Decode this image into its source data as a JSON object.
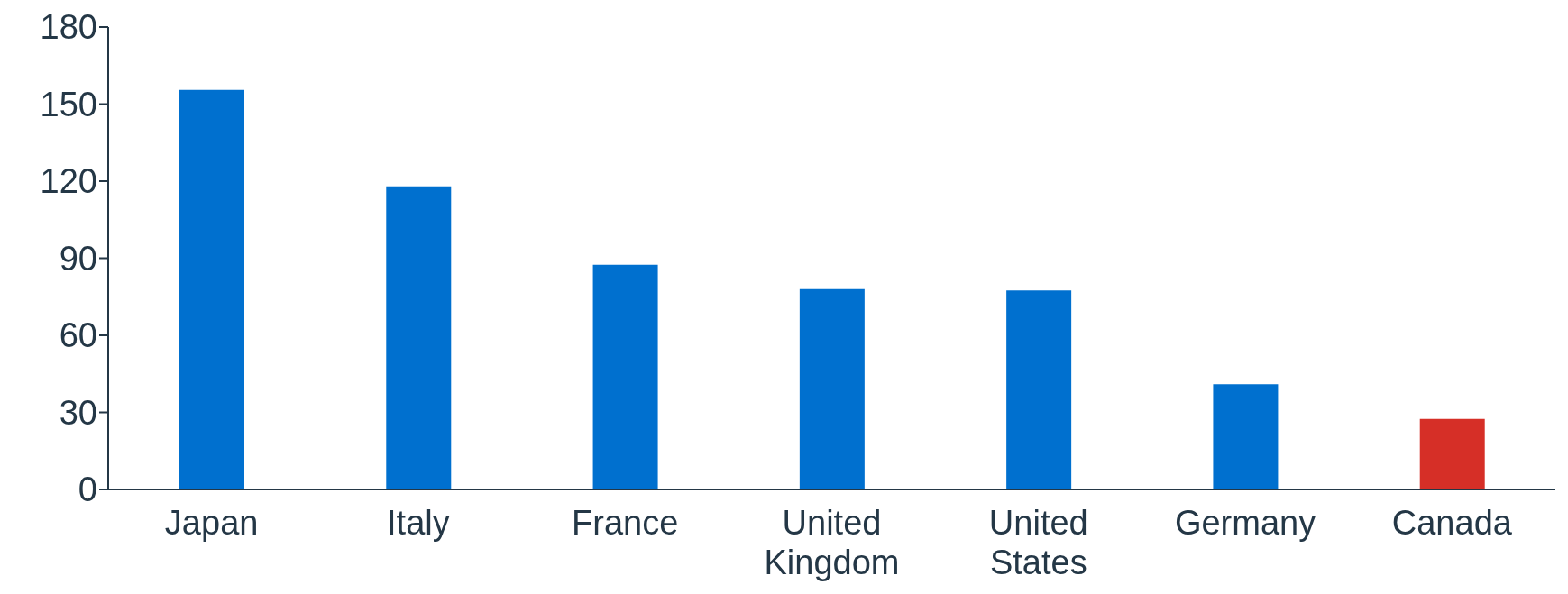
{
  "chart_data": {
    "type": "bar",
    "categories": [
      "Japan",
      "Italy",
      "France",
      "United Kingdom",
      "United States",
      "Germany",
      "Canada"
    ],
    "values": [
      155.5,
      118,
      87.5,
      78,
      77.5,
      41,
      27.5
    ],
    "colors": [
      "#0070cf",
      "#0070cf",
      "#0070cf",
      "#0070cf",
      "#0070cf",
      "#0070cf",
      "#d62f27"
    ],
    "ylim": [
      0,
      180
    ],
    "yticks": [
      0,
      30,
      60,
      90,
      120,
      150,
      180
    ]
  }
}
